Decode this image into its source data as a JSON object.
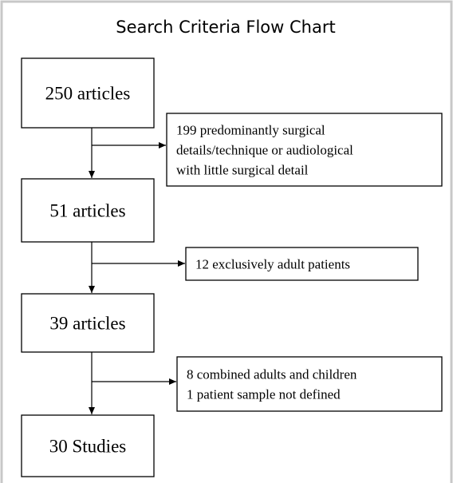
{
  "title": "Search Criteria Flow Chart",
  "nodes": [
    {
      "label": "250 articles"
    },
    {
      "label": "51 articles"
    },
    {
      "label": "39 articles"
    },
    {
      "label": "30 Studies"
    }
  ],
  "exclusions": [
    {
      "lines": [
        "199  predominantly surgical",
        "details/technique or audiological",
        "with little surgical detail"
      ]
    },
    {
      "lines": [
        "12  exclusively adult patients"
      ]
    },
    {
      "lines": [
        "8  combined adults and children",
        "1  patient sample not defined"
      ]
    }
  ]
}
